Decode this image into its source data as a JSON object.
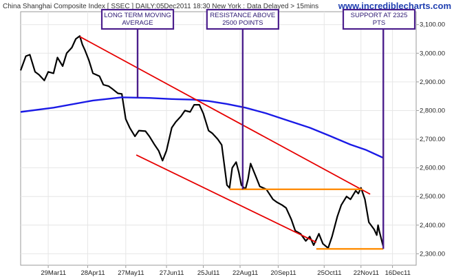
{
  "header": {
    "title": "China Shanghai Composite Index [ SSEC ] DAILY:05Dec2011 18:30 New York : Data Delayed > 15mins",
    "brand": "www.incrediblecharts.com"
  },
  "colors": {
    "price": "#000000",
    "ma": "#1a1ae6",
    "channel": "#e60000",
    "levels": "#ff8c00",
    "annotation": "#4b1e8c",
    "grid": "#e6e6e6"
  },
  "chart_data": {
    "type": "line",
    "title": "China Shanghai Composite Index [ SSEC ] DAILY:05Dec2011 18:30 New York : Data Delayed > 15mins",
    "xlabel": "",
    "ylabel": "",
    "x_ticks": [
      "29Mar11",
      "28Apr11",
      "27May11",
      "27Jun11",
      "25Jul11",
      "22Aug11",
      "20Sep11",
      "25Oct11",
      "22Nov11",
      "16Dec11"
    ],
    "x_tick_dates": [
      "2011-03-29",
      "2011-04-28",
      "2011-05-27",
      "2011-06-27",
      "2011-07-25",
      "2011-08-22",
      "2011-09-20",
      "2011-10-25",
      "2011-11-22",
      "2011-12-16"
    ],
    "y_ticks": [
      "3,100.00",
      "3,000.00",
      "2,900.00",
      "2,800.00",
      "2,700.00",
      "2,600.00",
      "2,500.00",
      "2,400.00",
      "2,300.00"
    ],
    "y_tick_values": [
      3100,
      3000,
      2900,
      2800,
      2700,
      2600,
      2500,
      2400,
      2300
    ],
    "xlim": [
      "2011-03-04",
      "2011-12-30"
    ],
    "ylim": [
      2260,
      3145
    ],
    "grid": true,
    "series": [
      {
        "role": "price",
        "points": [
          [
            "2011-03-04",
            2940
          ],
          [
            "2011-03-08",
            2990
          ],
          [
            "2011-03-11",
            2995
          ],
          [
            "2011-03-15",
            2935
          ],
          [
            "2011-03-18",
            2925
          ],
          [
            "2011-03-22",
            2905
          ],
          [
            "2011-03-25",
            2935
          ],
          [
            "2011-03-29",
            2930
          ],
          [
            "2011-04-01",
            2985
          ],
          [
            "2011-04-05",
            2955
          ],
          [
            "2011-04-08",
            3000
          ],
          [
            "2011-04-12",
            3020
          ],
          [
            "2011-04-15",
            3050
          ],
          [
            "2011-04-18",
            3060
          ],
          [
            "2011-04-20",
            3030
          ],
          [
            "2011-04-22",
            3010
          ],
          [
            "2011-04-25",
            2975
          ],
          [
            "2011-04-28",
            2930
          ],
          [
            "2011-05-03",
            2920
          ],
          [
            "2011-05-06",
            2890
          ],
          [
            "2011-05-10",
            2885
          ],
          [
            "2011-05-13",
            2875
          ],
          [
            "2011-05-17",
            2860
          ],
          [
            "2011-05-20",
            2858
          ],
          [
            "2011-05-23",
            2770
          ],
          [
            "2011-05-26",
            2740
          ],
          [
            "2011-05-30",
            2710
          ],
          [
            "2011-06-02",
            2730
          ],
          [
            "2011-06-07",
            2728
          ],
          [
            "2011-06-10",
            2710
          ],
          [
            "2011-06-14",
            2680
          ],
          [
            "2011-06-17",
            2660
          ],
          [
            "2011-06-20",
            2625
          ],
          [
            "2011-06-23",
            2660
          ],
          [
            "2011-06-27",
            2740
          ],
          [
            "2011-06-30",
            2760
          ],
          [
            "2011-07-04",
            2780
          ],
          [
            "2011-07-07",
            2800
          ],
          [
            "2011-07-11",
            2795
          ],
          [
            "2011-07-14",
            2820
          ],
          [
            "2011-07-18",
            2820
          ],
          [
            "2011-07-21",
            2790
          ],
          [
            "2011-07-25",
            2730
          ],
          [
            "2011-07-28",
            2720
          ],
          [
            "2011-08-01",
            2700
          ],
          [
            "2011-08-04",
            2680
          ],
          [
            "2011-08-08",
            2540
          ],
          [
            "2011-08-10",
            2530
          ],
          [
            "2011-08-12",
            2600
          ],
          [
            "2011-08-15",
            2620
          ],
          [
            "2011-08-17",
            2585
          ],
          [
            "2011-08-19",
            2540
          ],
          [
            "2011-08-22",
            2525
          ],
          [
            "2011-08-24",
            2560
          ],
          [
            "2011-08-26",
            2615
          ],
          [
            "2011-08-30",
            2570
          ],
          [
            "2011-09-02",
            2535
          ],
          [
            "2011-09-07",
            2525
          ],
          [
            "2011-09-12",
            2490
          ],
          [
            "2011-09-15",
            2480
          ],
          [
            "2011-09-19",
            2470
          ],
          [
            "2011-09-22",
            2460
          ],
          [
            "2011-09-26",
            2420
          ],
          [
            "2011-09-29",
            2380
          ],
          [
            "2011-10-03",
            2370
          ],
          [
            "2011-10-07",
            2345
          ],
          [
            "2011-10-10",
            2360
          ],
          [
            "2011-10-13",
            2330
          ],
          [
            "2011-10-17",
            2370
          ],
          [
            "2011-10-20",
            2335
          ],
          [
            "2011-10-24",
            2320
          ],
          [
            "2011-10-27",
            2360
          ],
          [
            "2011-10-31",
            2430
          ],
          [
            "2011-11-03",
            2470
          ],
          [
            "2011-11-07",
            2500
          ],
          [
            "2011-11-10",
            2490
          ],
          [
            "2011-11-14",
            2520
          ],
          [
            "2011-11-16",
            2510
          ],
          [
            "2011-11-18",
            2530
          ],
          [
            "2011-11-21",
            2490
          ],
          [
            "2011-11-24",
            2410
          ],
          [
            "2011-11-28",
            2385
          ],
          [
            "2011-11-30",
            2365
          ],
          [
            "2011-12-01",
            2400
          ],
          [
            "2011-12-02",
            2378
          ],
          [
            "2011-12-05",
            2325
          ]
        ]
      },
      {
        "role": "long-term moving average",
        "points": [
          [
            "2011-03-04",
            2795
          ],
          [
            "2011-03-29",
            2810
          ],
          [
            "2011-04-28",
            2835
          ],
          [
            "2011-05-20",
            2846
          ],
          [
            "2011-06-10",
            2844
          ],
          [
            "2011-06-27",
            2840
          ],
          [
            "2011-07-14",
            2838
          ],
          [
            "2011-07-25",
            2833
          ],
          [
            "2011-08-08",
            2823
          ],
          [
            "2011-08-22",
            2810
          ],
          [
            "2011-09-07",
            2790
          ],
          [
            "2011-09-20",
            2770
          ],
          [
            "2011-10-10",
            2740
          ],
          [
            "2011-10-25",
            2712
          ],
          [
            "2011-11-10",
            2681
          ],
          [
            "2011-11-22",
            2662
          ],
          [
            "2011-12-05",
            2635
          ]
        ]
      }
    ],
    "annotations": [
      {
        "type": "trendline",
        "from": [
          "2011-04-18",
          3058
        ],
        "to": [
          "2011-11-25",
          2508
        ]
      },
      {
        "type": "trendline",
        "from": [
          "2011-05-31",
          2645
        ],
        "to": [
          "2011-10-15",
          2340
        ]
      },
      {
        "type": "level",
        "value": 2525,
        "from": "2011-08-10",
        "to": "2011-11-19"
      },
      {
        "type": "level",
        "value": 2317,
        "from": "2011-10-15",
        "to": "2011-12-05"
      }
    ],
    "callouts": [
      {
        "lines": [
          "LONG TERM MOVING",
          "AVERAGE"
        ],
        "points_to": [
          "2011-06-01",
          2845
        ]
      },
      {
        "lines": [
          "RESISTANCE ABOVE",
          "2500 POINTS"
        ],
        "points_to": [
          "2011-08-20",
          2525
        ]
      },
      {
        "lines": [
          "SUPPORT AT 2325",
          "PTS"
        ],
        "points_to": [
          "2011-12-05",
          2317
        ]
      }
    ]
  }
}
